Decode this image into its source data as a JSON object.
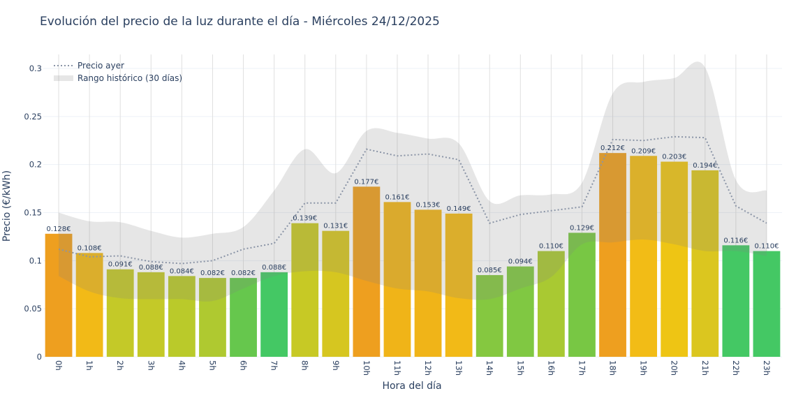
{
  "title": "Evolución del precio de la luz durante el día - Miércoles 24/12/2025",
  "chart_data": {
    "type": "bar",
    "title": "Evolución del precio de la luz durante el día - Miércoles 24/12/2025",
    "xlabel": "Hora del día",
    "ylabel": "Precio (€/kWh)",
    "ylim": [
      0,
      0.3
    ],
    "yticks": [
      "0",
      "0.05",
      "0.1",
      "0.15",
      "0.2",
      "0.25",
      "0.3"
    ],
    "grid": true,
    "legend_position": "top-left",
    "categories": [
      "0h",
      "1h",
      "2h",
      "3h",
      "4h",
      "5h",
      "6h",
      "7h",
      "8h",
      "9h",
      "10h",
      "11h",
      "12h",
      "13h",
      "14h",
      "15h",
      "16h",
      "17h",
      "18h",
      "19h",
      "20h",
      "21h",
      "22h",
      "23h"
    ],
    "values": [
      0.128,
      0.108,
      0.091,
      0.088,
      0.084,
      0.082,
      0.082,
      0.088,
      0.139,
      0.131,
      0.177,
      0.161,
      0.153,
      0.149,
      0.085,
      0.094,
      0.11,
      0.129,
      0.212,
      0.209,
      0.203,
      0.194,
      0.116,
      0.11
    ],
    "data_labels": [
      "0.128€",
      "0.108€",
      "0.091€",
      "0.088€",
      "0.084€",
      "0.082€",
      "0.082€",
      "0.088€",
      "0.139€",
      "0.131€",
      "0.177€",
      "0.161€",
      "0.153€",
      "0.149€",
      "0.085€",
      "0.094€",
      "0.110€",
      "0.129€",
      "0.212€",
      "0.209€",
      "0.203€",
      "0.194€",
      "0.116€",
      "0.110€"
    ],
    "bar_colors": [
      "#EE9F1F",
      "#F2BA17",
      "#C4C928",
      "#C4C928",
      "#BACA2A",
      "#AFC930",
      "#66C74D",
      "#44C864",
      "#C7C925",
      "#D6C620",
      "#EE9F1F",
      "#F0B418",
      "#F0B418",
      "#F2BA17",
      "#85C840",
      "#80C842",
      "#A9C932",
      "#78C744",
      "#EE9F1F",
      "#F2BC16",
      "#EEC514",
      "#DBC61F",
      "#44C864",
      "#44C864"
    ],
    "series": [
      {
        "name": "Precio ayer",
        "type": "line",
        "style": "dotted",
        "color": "#8a94a6",
        "values": [
          0.112,
          0.104,
          0.105,
          0.099,
          0.097,
          0.1,
          0.112,
          0.118,
          0.16,
          0.16,
          0.216,
          0.209,
          0.211,
          0.205,
          0.139,
          0.148,
          0.152,
          0.156,
          0.226,
          0.225,
          0.229,
          0.228,
          0.157,
          0.139
        ]
      },
      {
        "name": "Rango histórico (30 días)",
        "type": "band",
        "color": "#808080",
        "upper": [
          0.15,
          0.141,
          0.14,
          0.131,
          0.124,
          0.128,
          0.135,
          0.173,
          0.216,
          0.191,
          0.235,
          0.233,
          0.227,
          0.222,
          0.162,
          0.168,
          0.169,
          0.181,
          0.274,
          0.286,
          0.29,
          0.301,
          0.184,
          0.173
        ],
        "lower": [
          0.084,
          0.068,
          0.061,
          0.06,
          0.06,
          0.058,
          0.071,
          0.084,
          0.089,
          0.088,
          0.079,
          0.071,
          0.068,
          0.061,
          0.06,
          0.071,
          0.083,
          0.117,
          0.119,
          0.122,
          0.117,
          0.11,
          0.11,
          0.105
        ]
      }
    ]
  }
}
